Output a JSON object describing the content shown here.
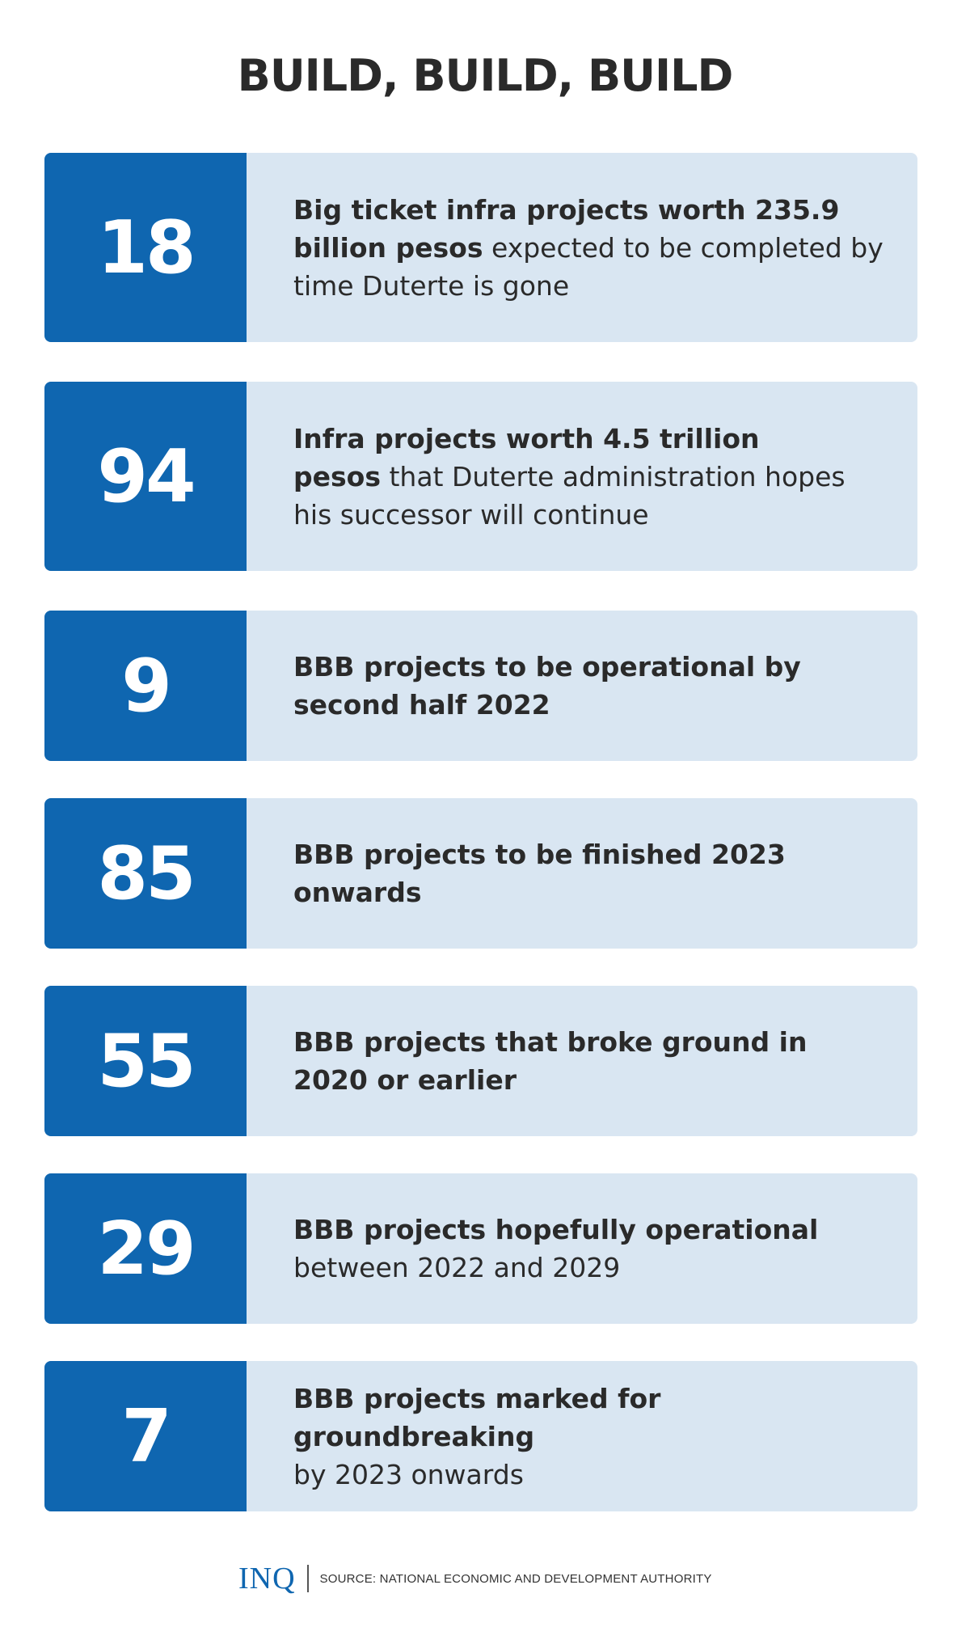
{
  "title": "BUILD, BUILD, BUILD",
  "stats": [
    {
      "number": "18",
      "bold_text": "Big ticket infra projects worth 235.9 billion pesos",
      "regular_text": "expected to be completed by time Duterte is gone"
    },
    {
      "number": "94",
      "bold_text": "Infra projects worth 4.5 trillion pesos",
      "regular_text": "that Duterte administration hopes his successor will continue"
    },
    {
      "number": "9",
      "bold_text": "BBB projects to be operational by second half 2022",
      "regular_text": ""
    },
    {
      "number": "85",
      "bold_text": "BBB projects to be finished 2023 onwards",
      "regular_text": ""
    },
    {
      "number": "55",
      "bold_text": "BBB projects that broke ground in 2020 or earlier",
      "regular_text": ""
    },
    {
      "number": "29",
      "bold_text": "BBB projects hopefully operational",
      "regular_text": "between 2022 and 2029"
    },
    {
      "number": "7",
      "bold_text": "BBB projects marked for groundbreaking",
      "regular_text": "by 2023 onwards"
    }
  ],
  "footer": {
    "logo": "INQ",
    "source": "SOURCE: NATIONAL ECONOMIC AND DEVELOPMENT AUTHORITY"
  },
  "colors": {
    "number_box": "#0f66b0",
    "card_background": "#d9e6f2",
    "text": "#2a2a2a"
  }
}
